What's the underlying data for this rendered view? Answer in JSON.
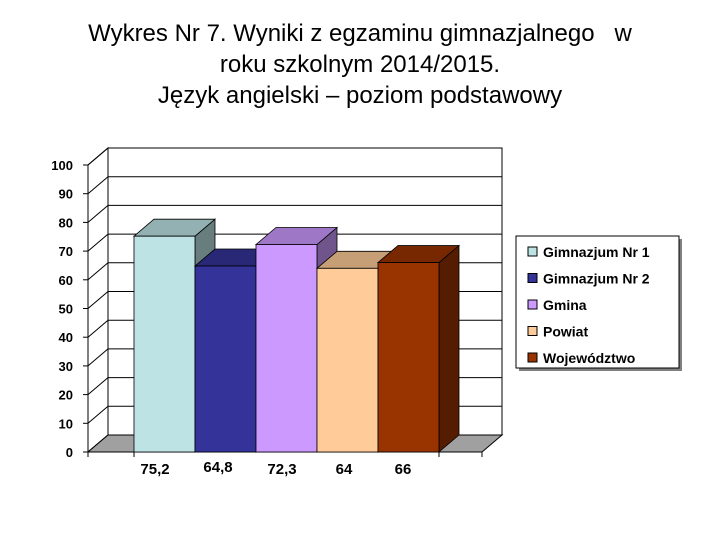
{
  "title_lines": [
    "Wykres Nr 7. Wyniki z egzaminu gimnazjalnego   w",
    "roku szkolnym 2014/2015.",
    "Język angielski – poziom podstawowy"
  ],
  "chart_data": {
    "type": "bar",
    "style": "3d",
    "ylim": [
      0,
      100
    ],
    "yticks": [
      0,
      10,
      20,
      30,
      40,
      50,
      60,
      70,
      80,
      90,
      100
    ],
    "grid": true,
    "legend_position": "right",
    "series": [
      {
        "name": "Gimnazjum Nr 1",
        "value": 75.2,
        "label": "75,2",
        "color": "#bde3e5"
      },
      {
        "name": "Gimnazjum Nr 2",
        "value": 64.8,
        "label": "64,8",
        "color": "#333399"
      },
      {
        "name": "Gmina",
        "value": 72.3,
        "label": "72,3",
        "color": "#cc99ff"
      },
      {
        "name": "Powiat",
        "value": 64,
        "label": "64",
        "color": "#ffcc99"
      },
      {
        "name": "Województwo",
        "value": 66,
        "label": "66",
        "color": "#993300"
      }
    ]
  }
}
